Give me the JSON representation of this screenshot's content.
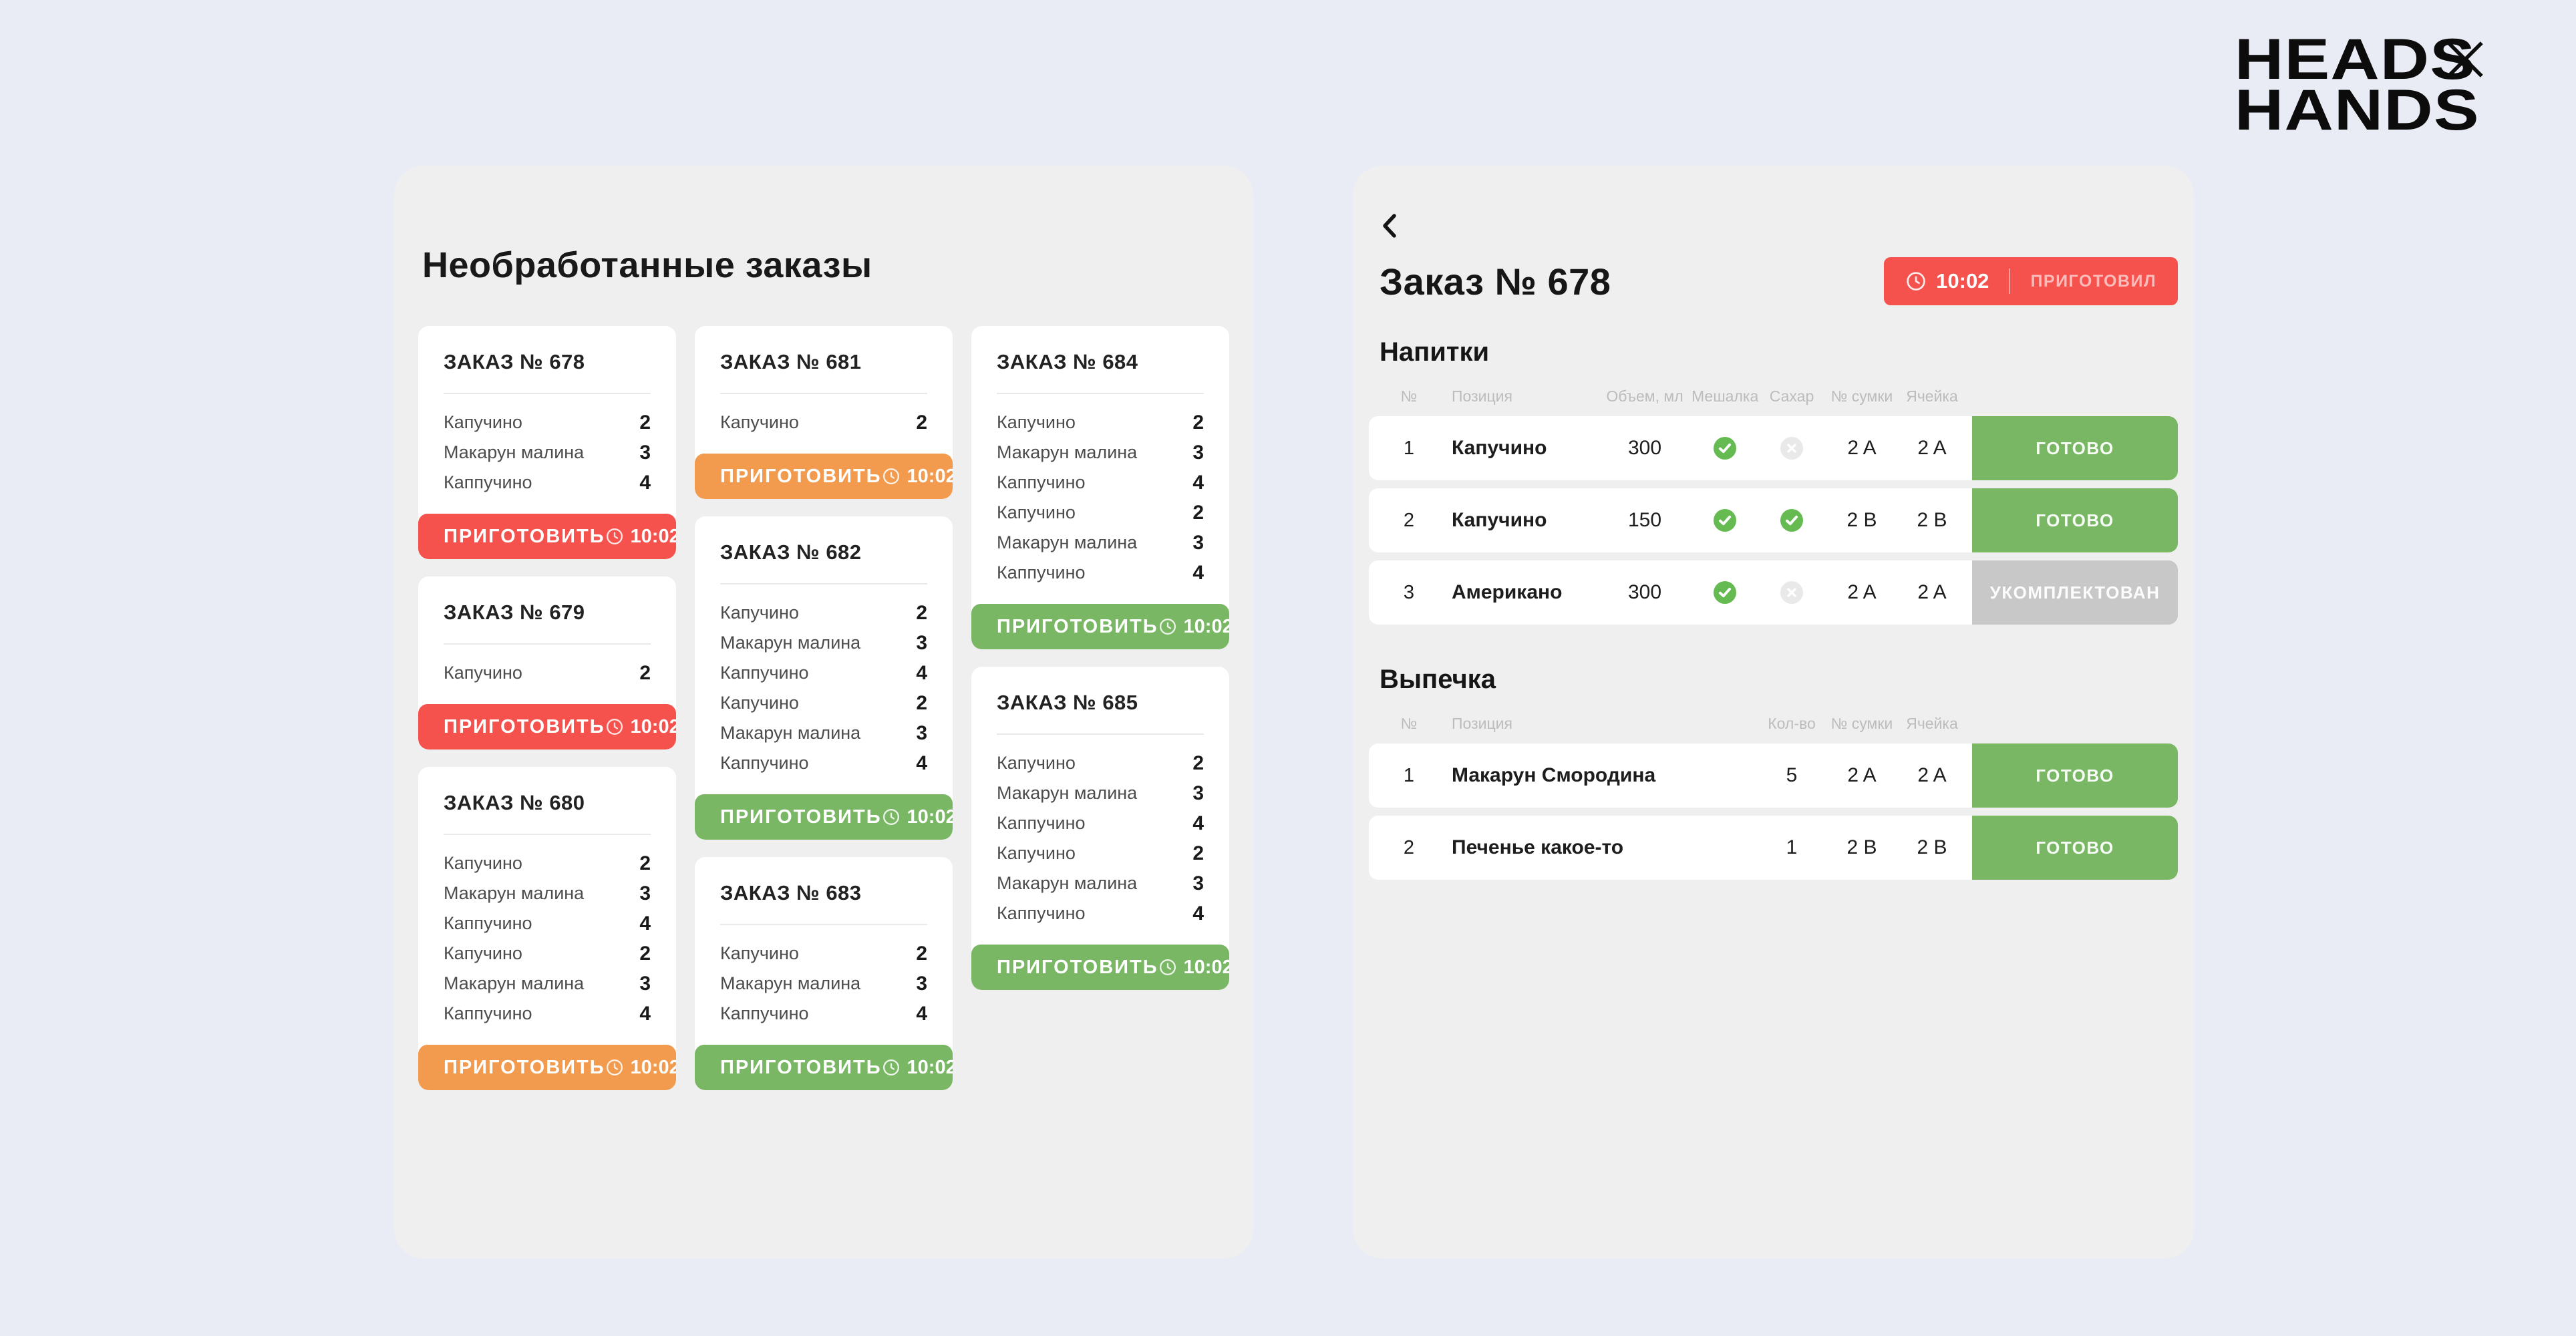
{
  "brand": {
    "word1": "HEADS",
    "word2": "HANDS"
  },
  "colors": {
    "red": "#f5524e",
    "orange": "#f29a4e",
    "green": "#79b765",
    "grey": "#c8c8c8",
    "icon_green": "#65bb52",
    "icon_grey": "#e9e9e9"
  },
  "left_panel": {
    "title": "Необработанные заказы",
    "action_label": "ПРИГОТОВИТЬ",
    "columns": [
      [
        {
          "title": "ЗАКАЗ № 678",
          "status": "red",
          "time": "10:02",
          "items": [
            {
              "name": "Капучино",
              "qty": "2"
            },
            {
              "name": "Макарун малина",
              "qty": "3"
            },
            {
              "name": "Каппучино",
              "qty": "4"
            }
          ]
        },
        {
          "title": "ЗАКАЗ № 679",
          "status": "red",
          "time": "10:02",
          "items": [
            {
              "name": "Капучино",
              "qty": "2"
            }
          ]
        },
        {
          "title": "ЗАКАЗ № 680",
          "status": "orange",
          "time": "10:02",
          "items": [
            {
              "name": "Капучино",
              "qty": "2"
            },
            {
              "name": "Макарун малина",
              "qty": "3"
            },
            {
              "name": "Каппучино",
              "qty": "4"
            },
            {
              "name": "Капучино",
              "qty": "2"
            },
            {
              "name": "Макарун малина",
              "qty": "3"
            },
            {
              "name": "Каппучино",
              "qty": "4"
            }
          ]
        }
      ],
      [
        {
          "title": "ЗАКАЗ № 681",
          "status": "orange",
          "time": "10:02",
          "items": [
            {
              "name": "Капучино",
              "qty": "2"
            }
          ]
        },
        {
          "title": "ЗАКАЗ № 682",
          "status": "green",
          "time": "10:02",
          "items": [
            {
              "name": "Капучино",
              "qty": "2"
            },
            {
              "name": "Макарун малина",
              "qty": "3"
            },
            {
              "name": "Каппучино",
              "qty": "4"
            },
            {
              "name": "Капучино",
              "qty": "2"
            },
            {
              "name": "Макарун малина",
              "qty": "3"
            },
            {
              "name": "Каппучино",
              "qty": "4"
            }
          ]
        },
        {
          "title": "ЗАКАЗ № 683",
          "status": "green",
          "time": "10:02",
          "items": [
            {
              "name": "Капучино",
              "qty": "2"
            },
            {
              "name": "Макарун малина",
              "qty": "3"
            },
            {
              "name": "Каппучино",
              "qty": "4"
            }
          ]
        }
      ],
      [
        {
          "title": "ЗАКАЗ № 684",
          "status": "green",
          "time": "10:02",
          "items": [
            {
              "name": "Капучино",
              "qty": "2"
            },
            {
              "name": "Макарун малина",
              "qty": "3"
            },
            {
              "name": "Каппучино",
              "qty": "4"
            },
            {
              "name": "Капучино",
              "qty": "2"
            },
            {
              "name": "Макарун малина",
              "qty": "3"
            },
            {
              "name": "Каппучино",
              "qty": "4"
            }
          ]
        },
        {
          "title": "ЗАКАЗ № 685",
          "status": "green",
          "time": "10:02",
          "items": [
            {
              "name": "Капучино",
              "qty": "2"
            },
            {
              "name": "Макарун малина",
              "qty": "3"
            },
            {
              "name": "Каппучино",
              "qty": "4"
            },
            {
              "name": "Капучино",
              "qty": "2"
            },
            {
              "name": "Макарун малина",
              "qty": "3"
            },
            {
              "name": "Каппучино",
              "qty": "4"
            }
          ]
        }
      ]
    ]
  },
  "right_panel": {
    "title": "Заказ № 678",
    "badge": {
      "time": "10:02",
      "label": "ПРИГОТОВИЛ"
    },
    "sections": [
      {
        "heading": "Напитки",
        "columns": [
          "№",
          "Позиция",
          "Объем, мл",
          "Мешалка",
          "Сахар",
          "№ сумки",
          "Ячейка"
        ],
        "rows": [
          {
            "num": "1",
            "name": "Капучино",
            "volume": "300",
            "stirrer": true,
            "sugar": false,
            "bag": "2 A",
            "cell": "2 A",
            "status": "ГОТОВО",
            "status_type": "green"
          },
          {
            "num": "2",
            "name": "Капучино",
            "volume": "150",
            "stirrer": true,
            "sugar": true,
            "bag": "2 B",
            "cell": "2 B",
            "status": "ГОТОВО",
            "status_type": "green"
          },
          {
            "num": "3",
            "name": "Американо",
            "volume": "300",
            "stirrer": true,
            "sugar": false,
            "bag": "2 A",
            "cell": "2 A",
            "status": "УКОМПЛЕКТОВАН",
            "status_type": "grey"
          }
        ]
      },
      {
        "heading": "Выпечка",
        "columns": [
          "№",
          "Позиция",
          "Кол-во",
          "№ сумки",
          "Ячейка"
        ],
        "rows": [
          {
            "num": "1",
            "name": "Макарун Смородина",
            "qty": "5",
            "bag": "2 A",
            "cell": "2 A",
            "status": "ГОТОВО",
            "status_type": "green"
          },
          {
            "num": "2",
            "name": "Печенье какое-то",
            "qty": "1",
            "bag": "2 B",
            "cell": "2 B",
            "status": "ГОТОВО",
            "status_type": "green"
          }
        ]
      }
    ]
  }
}
